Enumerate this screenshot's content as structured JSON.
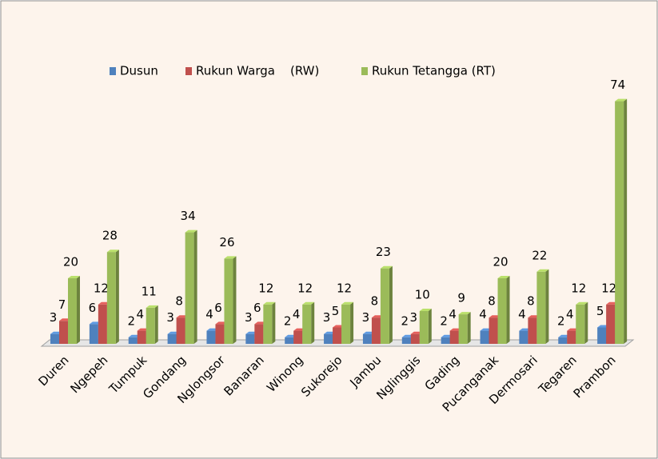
{
  "chart_data": {
    "type": "bar",
    "categories": [
      "Duren",
      "Ngepeh",
      "Tumpuk",
      "Gondang",
      "Nglongsor",
      "Banaran",
      "Winong",
      "Sukorejo",
      "Jambu",
      "Nglinggis",
      "Gading",
      "Pucanganak",
      "Dermosari",
      "Tegaren",
      "Prambon"
    ],
    "series": [
      {
        "name": "Dusun",
        "color": "#4f81bd",
        "values": [
          3,
          6,
          2,
          3,
          4,
          3,
          2,
          3,
          3,
          2,
          2,
          4,
          4,
          2,
          5
        ]
      },
      {
        "name": "Rukun Warga    (RW)",
        "color": "#c0504d",
        "values": [
          7,
          12,
          4,
          8,
          6,
          6,
          4,
          5,
          8,
          3,
          4,
          8,
          8,
          4,
          12
        ]
      },
      {
        "name": "Rukun Tetangga (RT)",
        "color": "#9bbb59",
        "values": [
          20,
          28,
          11,
          34,
          26,
          12,
          12,
          12,
          23,
          10,
          9,
          20,
          22,
          12,
          74
        ]
      }
    ],
    "legend": "top"
  }
}
